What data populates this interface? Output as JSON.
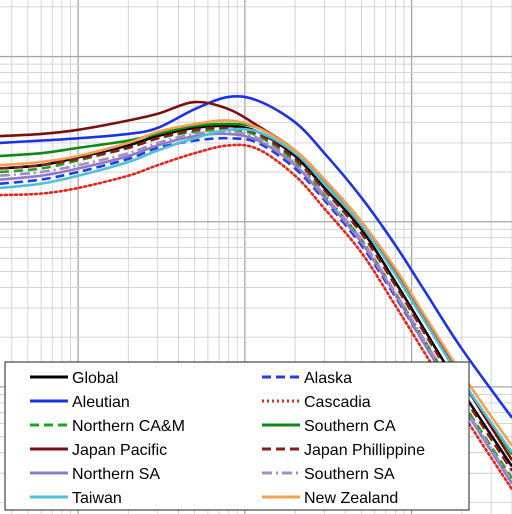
{
  "chart_data": {
    "type": "line",
    "title": "",
    "xlabel": "",
    "ylabel": "",
    "xscale": "log",
    "yscale": "log",
    "xlim": [
      0.034,
      40
    ],
    "ylim": [
      0.0017,
      2.2
    ],
    "grid": true,
    "legend_placement": "bottom-left",
    "series": [
      {
        "name": "Global",
        "color": "#000000",
        "dash": "solid",
        "x": [
          0.034,
          0.06,
          0.1,
          0.2,
          0.3,
          0.5,
          0.8,
          1.2,
          2,
          3,
          5,
          8,
          12,
          20,
          40
        ],
        "y": [
          0.21,
          0.22,
          0.245,
          0.29,
          0.33,
          0.37,
          0.38,
          0.35,
          0.25,
          0.16,
          0.09,
          0.043,
          0.022,
          0.0095,
          0.0033
        ]
      },
      {
        "name": "Alaska",
        "color": "#1f3fe6",
        "dash": "dashed",
        "x": [
          0.034,
          0.06,
          0.1,
          0.2,
          0.3,
          0.5,
          0.8,
          1.2,
          2,
          3,
          5,
          8,
          12,
          20,
          40
        ],
        "y": [
          0.17,
          0.18,
          0.2,
          0.24,
          0.28,
          0.31,
          0.32,
          0.3,
          0.21,
          0.135,
          0.072,
          0.035,
          0.018,
          0.0078,
          0.0026
        ]
      },
      {
        "name": "Aleutian",
        "color": "#1a33e8",
        "dash": "solid",
        "x": [
          0.034,
          0.06,
          0.1,
          0.2,
          0.3,
          0.5,
          0.8,
          1.2,
          2,
          3,
          5,
          8,
          12,
          20,
          40
        ],
        "y": [
          0.3,
          0.31,
          0.32,
          0.34,
          0.37,
          0.48,
          0.57,
          0.54,
          0.4,
          0.26,
          0.14,
          0.072,
          0.038,
          0.017,
          0.0065
        ]
      },
      {
        "name": "Cascadia",
        "color": "#e8231a",
        "dash": "dotted",
        "x": [
          0.034,
          0.06,
          0.1,
          0.2,
          0.3,
          0.5,
          0.8,
          1.2,
          2,
          3,
          5,
          8,
          12,
          20,
          40
        ],
        "y": [
          0.145,
          0.148,
          0.16,
          0.19,
          0.22,
          0.26,
          0.29,
          0.275,
          0.19,
          0.12,
          0.065,
          0.031,
          0.016,
          0.007,
          0.0024
        ]
      },
      {
        "name": "Northern CA&M",
        "color": "#22a322",
        "dash": "dashed",
        "x": [
          0.034,
          0.06,
          0.1,
          0.2,
          0.3,
          0.5,
          0.8,
          1.2,
          2,
          3,
          5,
          8,
          12,
          20,
          40
        ],
        "y": [
          0.2,
          0.21,
          0.235,
          0.28,
          0.32,
          0.35,
          0.36,
          0.33,
          0.23,
          0.145,
          0.078,
          0.037,
          0.019,
          0.0082,
          0.0028
        ]
      },
      {
        "name": "Southern CA",
        "color": "#0d8a16",
        "dash": "solid",
        "x": [
          0.034,
          0.06,
          0.1,
          0.2,
          0.3,
          0.5,
          0.8,
          1.2,
          2,
          3,
          5,
          8,
          12,
          20,
          40
        ],
        "y": [
          0.25,
          0.26,
          0.28,
          0.31,
          0.34,
          0.38,
          0.39,
          0.37,
          0.27,
          0.175,
          0.098,
          0.048,
          0.025,
          0.011,
          0.0039
        ]
      },
      {
        "name": "Japan Pacific",
        "color": "#7a1010",
        "dash": "solid",
        "x": [
          0.034,
          0.06,
          0.1,
          0.2,
          0.3,
          0.5,
          0.8,
          1.2,
          2,
          3,
          5,
          8,
          12,
          20,
          40
        ],
        "y": [
          0.33,
          0.34,
          0.36,
          0.41,
          0.45,
          0.53,
          0.48,
          0.38,
          0.27,
          0.18,
          0.1,
          0.05,
          0.026,
          0.011,
          0.0036
        ]
      },
      {
        "name": "Japan Phillippine",
        "color": "#8b1a1a",
        "dash": "dashed",
        "x": [
          0.034,
          0.06,
          0.1,
          0.2,
          0.3,
          0.5,
          0.8,
          1.2,
          2,
          3,
          5,
          8,
          12,
          20,
          40
        ],
        "y": [
          0.21,
          0.22,
          0.24,
          0.28,
          0.32,
          0.36,
          0.37,
          0.34,
          0.24,
          0.155,
          0.085,
          0.041,
          0.021,
          0.0091,
          0.0031
        ]
      },
      {
        "name": "Northern SA",
        "color": "#8e7cc3",
        "dash": "solid",
        "x": [
          0.034,
          0.06,
          0.1,
          0.2,
          0.3,
          0.5,
          0.8,
          1.2,
          2,
          3,
          5,
          8,
          12,
          20,
          40
        ],
        "y": [
          0.18,
          0.19,
          0.21,
          0.25,
          0.29,
          0.33,
          0.34,
          0.31,
          0.22,
          0.14,
          0.075,
          0.036,
          0.018,
          0.0078,
          0.0026
        ]
      },
      {
        "name": "Southern SA",
        "color": "#a58cc8",
        "dash": "dashdot",
        "x": [
          0.034,
          0.06,
          0.1,
          0.2,
          0.3,
          0.5,
          0.8,
          1.2,
          2,
          3,
          5,
          8,
          12,
          20,
          40
        ],
        "y": [
          0.19,
          0.2,
          0.22,
          0.26,
          0.3,
          0.34,
          0.35,
          0.32,
          0.225,
          0.145,
          0.078,
          0.037,
          0.019,
          0.008,
          0.0027
        ]
      },
      {
        "name": "Taiwan",
        "color": "#4fc1d6",
        "dash": "solid",
        "x": [
          0.034,
          0.06,
          0.1,
          0.2,
          0.3,
          0.5,
          0.8,
          1.2,
          2,
          3,
          5,
          8,
          12,
          20,
          40
        ],
        "y": [
          0.16,
          0.17,
          0.19,
          0.23,
          0.27,
          0.32,
          0.36,
          0.35,
          0.26,
          0.17,
          0.095,
          0.048,
          0.025,
          0.011,
          0.004
        ]
      },
      {
        "name": "New Zealand",
        "color": "#f4a050",
        "dash": "solid",
        "x": [
          0.034,
          0.06,
          0.1,
          0.2,
          0.3,
          0.5,
          0.8,
          1.2,
          2,
          3,
          5,
          8,
          12,
          20,
          40
        ],
        "y": [
          0.22,
          0.23,
          0.25,
          0.3,
          0.35,
          0.39,
          0.41,
          0.37,
          0.27,
          0.18,
          0.1,
          0.052,
          0.027,
          0.012,
          0.0044
        ]
      }
    ],
    "legend_order": [
      "Global",
      "Alaska",
      "Aleutian",
      "Cascadia",
      "Northern CA&M",
      "Southern CA",
      "Japan Pacific",
      "Japan Phillippine",
      "Northern SA",
      "Southern SA",
      "Taiwan",
      "New Zealand"
    ]
  }
}
